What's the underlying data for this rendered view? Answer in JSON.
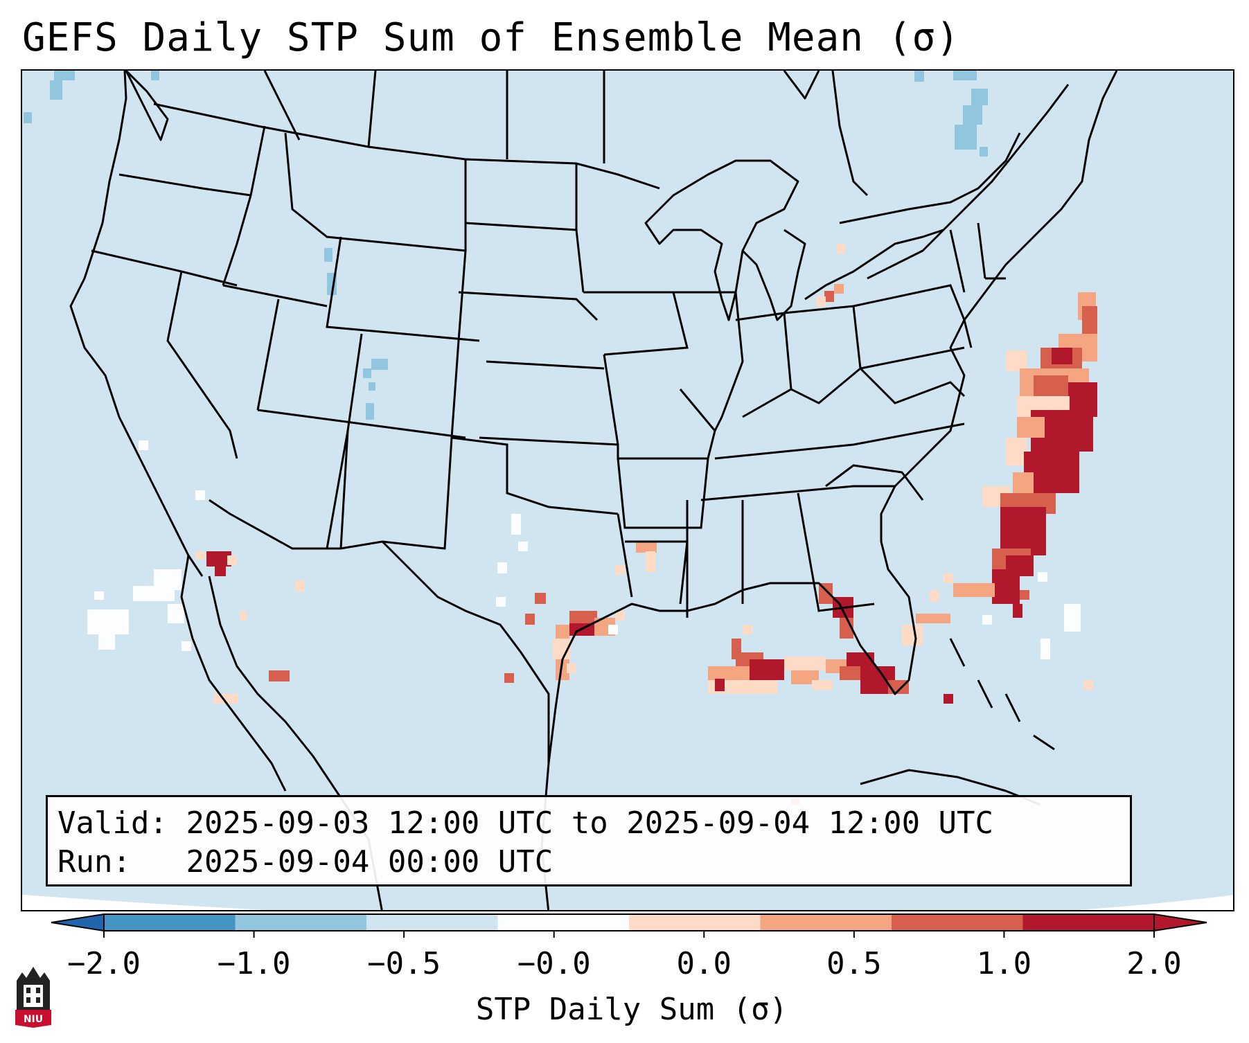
{
  "title": "GEFS Daily STP Sum of Ensemble Mean (σ)",
  "info": {
    "valid_label": "Valid:",
    "valid_value": "2025-09-03 12:00 UTC to 2025-09-04 12:00 UTC",
    "run_label": "Run:",
    "run_value": "2025-09-04 00:00 UTC"
  },
  "colorbar": {
    "title": "STP Daily Sum (σ)",
    "ticks": [
      "−2.0",
      "−1.0",
      "−0.5",
      "−0.0",
      "0.0",
      "0.5",
      "1.0",
      "2.0"
    ],
    "colors": [
      "#4393c3",
      "#92c5de",
      "#d1e5f0",
      "#fbfdff",
      "#fddbc7",
      "#f4a582",
      "#d6604d",
      "#b2182b"
    ],
    "extend": "both",
    "under_color": "#2166ac",
    "over_color": "#b2182b"
  },
  "map": {
    "background_color": "#d1e5f0",
    "outside_color": "#ffffff",
    "border_color": "#000000"
  },
  "logo": {
    "text": "NIU",
    "color": "#c8102e"
  }
}
